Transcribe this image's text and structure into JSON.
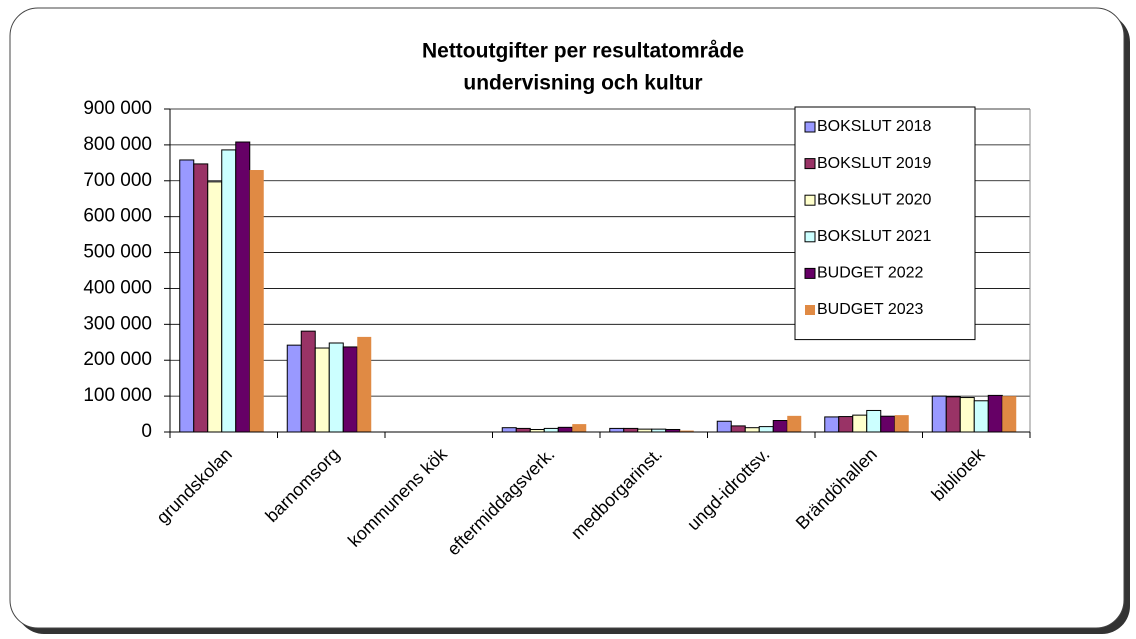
{
  "chart_data": {
    "type": "bar",
    "title": [
      "Nettoutgifter per resultatområde",
      "undervisning och kultur"
    ],
    "categories": [
      "grundskolan",
      "barnomsorg",
      "kommunens kök",
      "eftermiddagsverk.",
      "medborgarinst.",
      "ungd-idrottsv.",
      "Brändöhallen",
      "bibliotek"
    ],
    "series": [
      {
        "name": "BOKSLUT 2018",
        "color": "#9999ff",
        "values": [
          758000,
          242000,
          0,
          12000,
          10000,
          30000,
          42000,
          100000
        ]
      },
      {
        "name": "BOKSLUT 2019",
        "color": "#993366",
        "values": [
          747000,
          281000,
          0,
          10000,
          10000,
          17000,
          43000,
          98000
        ]
      },
      {
        "name": "BOKSLUT 2020",
        "color": "#ffffcc",
        "values": [
          697000,
          234000,
          0,
          7000,
          8000,
          12000,
          47000,
          96000
        ]
      },
      {
        "name": "BOKSLUT 2021",
        "color": "#ccffff",
        "values": [
          786000,
          248000,
          0,
          10000,
          8000,
          15000,
          60000,
          87000
        ]
      },
      {
        "name": "BUDGET 2022",
        "color": "#660066",
        "values": [
          808000,
          237000,
          0,
          13000,
          7000,
          32000,
          44000,
          102000
        ]
      },
      {
        "name": "BUDGET 2023",
        "color": "#e08a44",
        "values": [
          730000,
          265000,
          0,
          22000,
          4000,
          45000,
          47000,
          100000
        ]
      }
    ],
    "ylim": [
      0,
      900000
    ],
    "yticks": [
      0,
      {
        "value": 100000,
        "label": "100 000"
      },
      {
        "value": 200000,
        "label": "200 000"
      },
      {
        "value": 300000,
        "label": "300 000"
      },
      {
        "value": 400000,
        "label": "400 000"
      },
      {
        "value": 500000,
        "label": "500 000"
      },
      {
        "value": 600000,
        "label": "600 000"
      },
      {
        "value": 700000,
        "label": "700 000"
      },
      {
        "value": 800000,
        "label": "800 000"
      },
      {
        "value": 900000,
        "label": "900 000"
      }
    ],
    "grid": true,
    "legend": "top-right"
  }
}
